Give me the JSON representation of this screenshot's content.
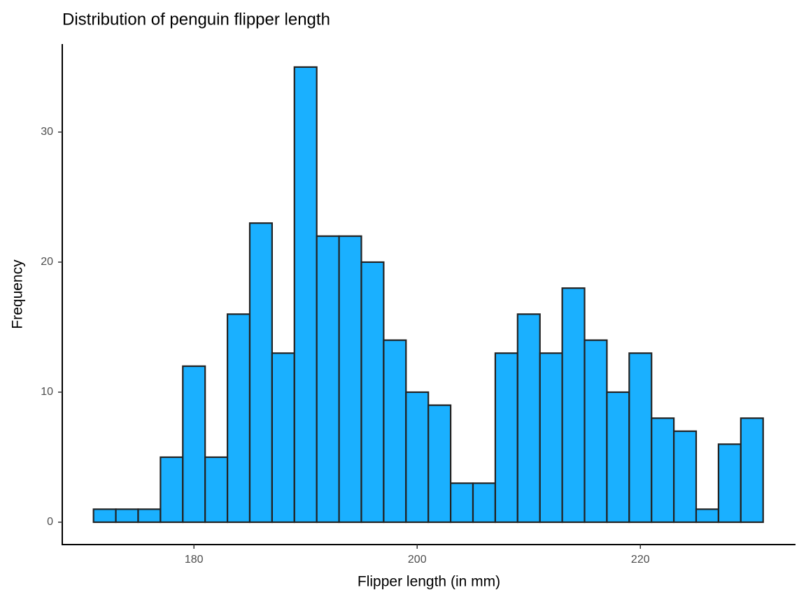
{
  "chart_data": {
    "type": "histogram",
    "title": "Distribution of penguin flipper length",
    "x_label": "Flipper length (in mm)",
    "y_label": "Frequency",
    "bins": [
      171,
      173,
      175,
      177,
      179,
      181,
      183,
      185,
      187,
      189,
      191,
      193,
      195,
      197,
      199,
      201,
      203,
      205,
      207,
      209,
      211,
      213,
      215,
      217,
      219,
      221,
      223,
      225,
      227,
      229,
      231
    ],
    "values": [
      1,
      1,
      1,
      5,
      12,
      5,
      16,
      23,
      13,
      35,
      22,
      22,
      20,
      14,
      10,
      9,
      3,
      3,
      13,
      16,
      13,
      18,
      14,
      10,
      13,
      8,
      7,
      1,
      6,
      8
    ],
    "color": "#1AB0FF",
    "edge_color": "#222222",
    "xlim": [
      168.2,
      233.9
    ],
    "ylim": [
      -1.72,
      36.77
    ],
    "xticks": [
      180,
      200,
      220
    ],
    "yticks": [
      0,
      10,
      20,
      30
    ],
    "grid": false
  }
}
